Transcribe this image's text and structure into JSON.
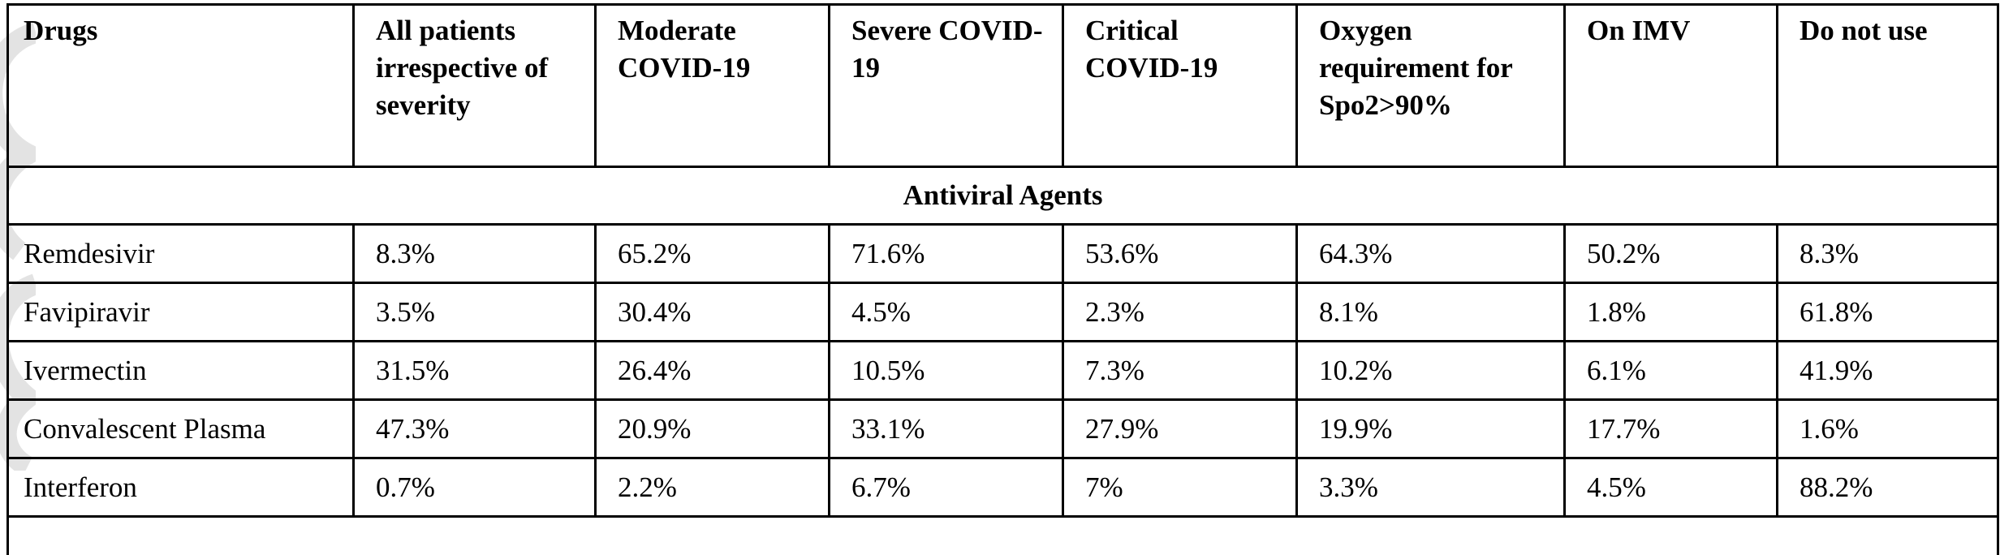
{
  "table": {
    "headers": [
      "Drugs",
      "All patients irrespective of severity",
      "Moderate COVID-19",
      "Severe COVID-19",
      "Critical COVID-19",
      "Oxygen requirement for Spo2>90%",
      "On IMV",
      "Do not use"
    ],
    "section_title": "Antiviral Agents",
    "rows": [
      {
        "drug": "Remdesivir",
        "values": [
          "8.3%",
          "65.2%",
          "71.6%",
          "53.6%",
          "64.3%",
          "50.2%",
          "8.3%"
        ]
      },
      {
        "drug": "Favipiravir",
        "values": [
          "3.5%",
          "30.4%",
          "4.5%",
          "2.3%",
          "8.1%",
          "1.8%",
          "61.8%"
        ]
      },
      {
        "drug": "Ivermectin",
        "values": [
          "31.5%",
          "26.4%",
          "10.5%",
          "7.3%",
          "10.2%",
          "6.1%",
          "41.9%"
        ]
      },
      {
        "drug": "Convalescent Plasma",
        "values": [
          "47.3%",
          "20.9%",
          "33.1%",
          "27.9%",
          "19.9%",
          "17.7%",
          "1.6%"
        ]
      },
      {
        "drug": "Interferon",
        "values": [
          "0.7%",
          "2.2%",
          "6.7%",
          "7%",
          "3.3%",
          "4.5%",
          "88.2%"
        ]
      }
    ]
  }
}
